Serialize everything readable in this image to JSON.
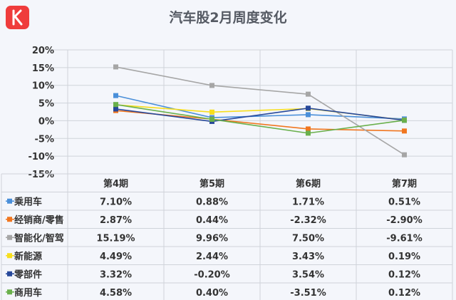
{
  "title": "汽车股2月周度变化",
  "colors": {
    "background": "#f4f6fb",
    "grid": "#cfd3da",
    "text": "#333333",
    "logo": "#ef3c3c"
  },
  "chart_data": {
    "type": "line",
    "title": "汽车股2月周度变化",
    "categories": [
      "第4期",
      "第5期",
      "第6期",
      "第7期"
    ],
    "ylim": [
      -15,
      20
    ],
    "yticks": [
      "20%",
      "15%",
      "10%",
      "5%",
      "0%",
      "-5%",
      "-10%",
      "-15%"
    ],
    "ytick_values": [
      20,
      15,
      10,
      5,
      0,
      -5,
      -10,
      -15
    ],
    "grid": true,
    "legend": "table-left",
    "series": [
      {
        "name": "乘用车",
        "color": "#4a8fd9",
        "values": [
          7.1,
          0.88,
          1.71,
          0.51
        ],
        "labels": [
          "7.10%",
          "0.88%",
          "1.71%",
          "0.51%"
        ]
      },
      {
        "name": "经销商/零售",
        "color": "#f0761f",
        "values": [
          2.87,
          0.44,
          -2.32,
          -2.9
        ],
        "labels": [
          "2.87%",
          "0.44%",
          "-2.32%",
          "-2.90%"
        ]
      },
      {
        "name": "智能化/智驾",
        "color": "#a6a6a6",
        "values": [
          15.19,
          9.96,
          7.5,
          -9.61
        ],
        "labels": [
          "15.19%",
          "9.96%",
          "7.50%",
          "-9.61%"
        ]
      },
      {
        "name": "新能源",
        "color": "#f7de1c",
        "values": [
          4.49,
          2.44,
          3.43,
          0.19
        ],
        "labels": [
          "4.49%",
          "2.44%",
          "3.43%",
          "0.19%"
        ]
      },
      {
        "name": "零部件",
        "color": "#27489a",
        "values": [
          3.32,
          -0.2,
          3.54,
          0.12
        ],
        "labels": [
          "3.32%",
          "-0.20%",
          "3.54%",
          "0.12%"
        ]
      },
      {
        "name": "商用车",
        "color": "#6ab04c",
        "values": [
          4.58,
          0.4,
          -3.51,
          0.12
        ],
        "labels": [
          "4.58%",
          "0.40%",
          "-3.51%",
          "0.12%"
        ]
      }
    ]
  }
}
